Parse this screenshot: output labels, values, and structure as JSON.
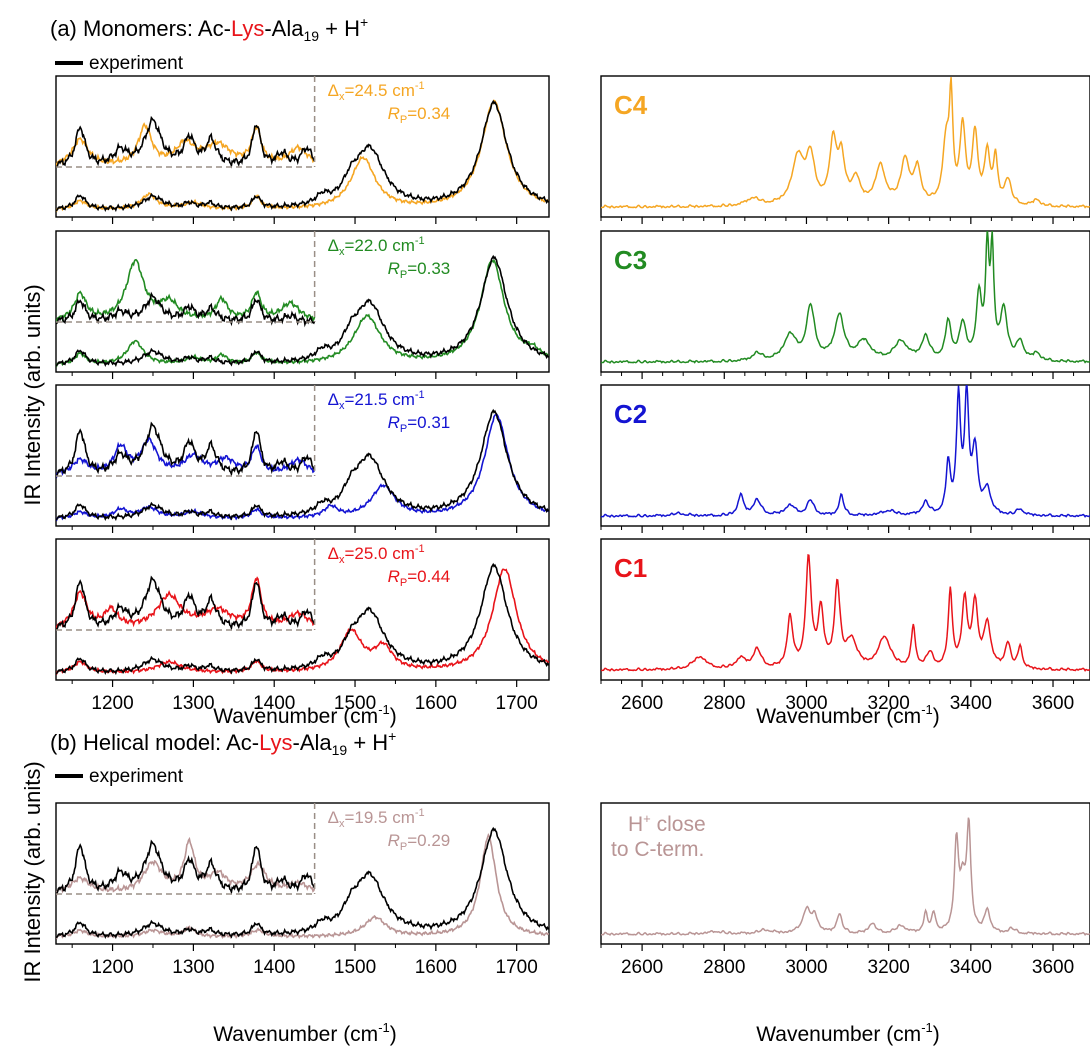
{
  "section_a": {
    "prefix": "(a) Monomers: Ac-",
    "red": "Lys",
    "mid": "-Ala",
    "sub": "19",
    "tail": " + H",
    "sup": "+"
  },
  "section_b": {
    "prefix": "(b) Helical model: Ac-",
    "red": "Lys",
    "mid": "-Ala",
    "sub": "19",
    "tail": " + H",
    "sup": "+"
  },
  "legend": {
    "label": "experiment",
    "color": "#000000"
  },
  "axes": {
    "ylabel": "IR Intensity (arb. units)",
    "xlabel_left": {
      "main": "Wavenumber (cm",
      "sup": "-1",
      "close": ")"
    },
    "xlabel_right": {
      "main": "Wavenumber (cm",
      "sup": "-1",
      "close": ")"
    }
  },
  "chart_data": [
    {
      "type": "line",
      "panel": "C4 fingerprint",
      "x_range": [
        1130,
        1740
      ],
      "xticks": [
        1200,
        1300,
        1400,
        1500,
        1600,
        1700
      ],
      "color": "#f5a623",
      "delta_label": "Δ",
      "delta_sub": "x",
      "delta_value": "=24.5 cm",
      "delta_unit_sup": "-1",
      "rp_label": "R",
      "rp_sub": "P",
      "rp_value": "=0.34",
      "experiment_peaks": [
        [
          1160,
          0.13,
          8
        ],
        [
          1250,
          0.12,
          15
        ],
        [
          1295,
          0.05,
          8
        ],
        [
          1320,
          0.05,
          8
        ],
        [
          1378,
          0.11,
          6
        ],
        [
          1460,
          0.08,
          10
        ],
        [
          1495,
          0.15,
          12
        ],
        [
          1518,
          0.55,
          22
        ],
        [
          1672,
          1.0,
          20
        ]
      ],
      "theory_peaks": [
        [
          1160,
          0.08,
          10
        ],
        [
          1245,
          0.14,
          12
        ],
        [
          1300,
          0.06,
          14
        ],
        [
          1378,
          0.12,
          6
        ],
        [
          1510,
          0.48,
          18
        ],
        [
          1672,
          1.02,
          19
        ]
      ],
      "inset_experiment": [
        [
          1160,
          0.65,
          7
        ],
        [
          1210,
          0.25,
          10
        ],
        [
          1250,
          0.75,
          12
        ],
        [
          1295,
          0.45,
          8
        ],
        [
          1322,
          0.42,
          8
        ],
        [
          1378,
          0.7,
          6
        ],
        [
          1410,
          0.2,
          8
        ],
        [
          1440,
          0.3,
          8
        ]
      ],
      "inset_theory": [
        [
          1160,
          0.45,
          12
        ],
        [
          1240,
          0.65,
          10
        ],
        [
          1290,
          0.35,
          14
        ],
        [
          1330,
          0.35,
          20
        ],
        [
          1378,
          0.6,
          7
        ],
        [
          1430,
          0.3,
          14
        ]
      ]
    },
    {
      "type": "line",
      "panel": "C3 fingerprint",
      "x_range": [
        1130,
        1740
      ],
      "xticks": [
        1200,
        1300,
        1400,
        1500,
        1600,
        1700
      ],
      "color": "#228b22",
      "delta_label": "Δ",
      "delta_sub": "x",
      "delta_value": "=22.0 cm",
      "delta_unit_sup": "-1",
      "rp_label": "R",
      "rp_sub": "P",
      "rp_value": "=0.33",
      "experiment_peaks": [
        [
          1160,
          0.13,
          8
        ],
        [
          1250,
          0.12,
          15
        ],
        [
          1295,
          0.05,
          8
        ],
        [
          1320,
          0.05,
          8
        ],
        [
          1378,
          0.11,
          6
        ],
        [
          1460,
          0.08,
          10
        ],
        [
          1495,
          0.15,
          12
        ],
        [
          1518,
          0.55,
          22
        ],
        [
          1672,
          1.0,
          20
        ]
      ],
      "theory_peaks": [
        [
          1160,
          0.1,
          8
        ],
        [
          1228,
          0.22,
          12
        ],
        [
          1300,
          0.06,
          12
        ],
        [
          1335,
          0.08,
          8
        ],
        [
          1378,
          0.1,
          7
        ],
        [
          1515,
          0.45,
          20
        ],
        [
          1670,
          0.98,
          18
        ],
        [
          1720,
          0.08,
          12
        ]
      ],
      "inset_experiment": [
        [
          1160,
          0.35,
          7
        ],
        [
          1210,
          0.15,
          10
        ],
        [
          1250,
          0.4,
          12
        ],
        [
          1295,
          0.22,
          8
        ],
        [
          1322,
          0.2,
          8
        ],
        [
          1378,
          0.38,
          6
        ],
        [
          1420,
          0.1,
          8
        ]
      ],
      "inset_theory": [
        [
          1160,
          0.45,
          9
        ],
        [
          1228,
          1.0,
          13
        ],
        [
          1270,
          0.3,
          14
        ],
        [
          1335,
          0.35,
          9
        ],
        [
          1378,
          0.45,
          7
        ],
        [
          1420,
          0.3,
          14
        ]
      ]
    },
    {
      "type": "line",
      "panel": "C2 fingerprint",
      "x_range": [
        1130,
        1740
      ],
      "xticks": [
        1200,
        1300,
        1400,
        1500,
        1600,
        1700
      ],
      "color": "#1414d2",
      "delta_label": "Δ",
      "delta_sub": "x",
      "delta_value": "=21.5 cm",
      "delta_unit_sup": "-1",
      "rp_label": "R",
      "rp_sub": "P",
      "rp_value": "=0.31",
      "experiment_peaks": [
        [
          1160,
          0.13,
          8
        ],
        [
          1250,
          0.12,
          15
        ],
        [
          1295,
          0.05,
          8
        ],
        [
          1320,
          0.05,
          8
        ],
        [
          1378,
          0.11,
          6
        ],
        [
          1460,
          0.08,
          10
        ],
        [
          1495,
          0.15,
          12
        ],
        [
          1518,
          0.55,
          22
        ],
        [
          1672,
          1.0,
          20
        ]
      ],
      "theory_peaks": [
        [
          1160,
          0.06,
          10
        ],
        [
          1210,
          0.08,
          10
        ],
        [
          1245,
          0.1,
          14
        ],
        [
          1300,
          0.06,
          14
        ],
        [
          1378,
          0.08,
          7
        ],
        [
          1470,
          0.1,
          10
        ],
        [
          1535,
          0.3,
          18
        ],
        [
          1675,
          0.98,
          18
        ]
      ],
      "inset_experiment": [
        [
          1160,
          0.75,
          7
        ],
        [
          1210,
          0.3,
          10
        ],
        [
          1250,
          0.8,
          12
        ],
        [
          1295,
          0.5,
          8
        ],
        [
          1322,
          0.45,
          8
        ],
        [
          1378,
          0.75,
          6
        ],
        [
          1410,
          0.2,
          8
        ],
        [
          1440,
          0.3,
          8
        ]
      ],
      "inset_theory": [
        [
          1160,
          0.25,
          12
        ],
        [
          1210,
          0.45,
          10
        ],
        [
          1245,
          0.55,
          12
        ],
        [
          1300,
          0.3,
          14
        ],
        [
          1340,
          0.25,
          14
        ],
        [
          1378,
          0.45,
          7
        ],
        [
          1430,
          0.25,
          14
        ]
      ]
    },
    {
      "type": "line",
      "panel": "C1 fingerprint",
      "x_range": [
        1130,
        1740
      ],
      "xticks": [
        1200,
        1300,
        1400,
        1500,
        1600,
        1700
      ],
      "color": "#e8141a",
      "delta_label": "Δ",
      "delta_sub": "x",
      "delta_value": "=25.0 cm",
      "delta_unit_sup": "-1",
      "rp_label": "R",
      "rp_sub": "P",
      "rp_value": "=0.44",
      "experiment_peaks": [
        [
          1160,
          0.13,
          8
        ],
        [
          1250,
          0.12,
          15
        ],
        [
          1295,
          0.05,
          8
        ],
        [
          1320,
          0.05,
          8
        ],
        [
          1378,
          0.11,
          6
        ],
        [
          1460,
          0.08,
          10
        ],
        [
          1495,
          0.15,
          12
        ],
        [
          1518,
          0.55,
          22
        ],
        [
          1672,
          1.0,
          20
        ]
      ],
      "theory_peaks": [
        [
          1160,
          0.1,
          10
        ],
        [
          1270,
          0.1,
          18
        ],
        [
          1378,
          0.1,
          7
        ],
        [
          1495,
          0.38,
          16
        ],
        [
          1535,
          0.22,
          14
        ],
        [
          1685,
          0.98,
          18
        ]
      ],
      "inset_experiment": [
        [
          1160,
          0.8,
          7
        ],
        [
          1210,
          0.3,
          10
        ],
        [
          1250,
          0.8,
          12
        ],
        [
          1295,
          0.5,
          8
        ],
        [
          1322,
          0.45,
          8
        ],
        [
          1378,
          0.8,
          6
        ],
        [
          1410,
          0.2,
          8
        ],
        [
          1440,
          0.3,
          8
        ]
      ],
      "inset_theory": [
        [
          1160,
          0.6,
          10
        ],
        [
          1198,
          0.3,
          10
        ],
        [
          1270,
          0.55,
          18
        ],
        [
          1330,
          0.3,
          20
        ],
        [
          1378,
          0.8,
          7
        ],
        [
          1430,
          0.25,
          16
        ]
      ]
    },
    {
      "type": "line",
      "panel": "C4 high-frequency",
      "x_range": [
        2500,
        3690
      ],
      "xticks": [
        2600,
        2800,
        3000,
        3200,
        3400,
        3600
      ],
      "color": "#f5a623",
      "label": "C4",
      "peaks": [
        [
          2870,
          0.06,
          20
        ],
        [
          2980,
          0.38,
          18
        ],
        [
          3010,
          0.35,
          12
        ],
        [
          3065,
          0.48,
          10
        ],
        [
          3085,
          0.35,
          10
        ],
        [
          3120,
          0.2,
          12
        ],
        [
          3180,
          0.3,
          15
        ],
        [
          3240,
          0.35,
          12
        ],
        [
          3270,
          0.28,
          10
        ],
        [
          3340,
          0.48,
          10
        ],
        [
          3352,
          0.75,
          5
        ],
        [
          3380,
          0.6,
          8
        ],
        [
          3410,
          0.55,
          8
        ],
        [
          3440,
          0.4,
          8
        ],
        [
          3460,
          0.35,
          6
        ],
        [
          3490,
          0.2,
          10
        ],
        [
          3560,
          0.05,
          10
        ]
      ]
    },
    {
      "type": "line",
      "panel": "C3 high-frequency",
      "x_range": [
        2500,
        3690
      ],
      "xticks": [
        2600,
        2800,
        3000,
        3200,
        3400,
        3600
      ],
      "color": "#228b22",
      "label": "C3",
      "peaks": [
        [
          2880,
          0.06,
          15
        ],
        [
          2960,
          0.2,
          18
        ],
        [
          3010,
          0.42,
          12
        ],
        [
          3080,
          0.35,
          14
        ],
        [
          3140,
          0.15,
          20
        ],
        [
          3230,
          0.15,
          20
        ],
        [
          3290,
          0.18,
          12
        ],
        [
          3345,
          0.3,
          8
        ],
        [
          3380,
          0.28,
          10
        ],
        [
          3420,
          0.5,
          8
        ],
        [
          3440,
          0.82,
          5
        ],
        [
          3452,
          0.82,
          5
        ],
        [
          3480,
          0.4,
          10
        ],
        [
          3520,
          0.15,
          10
        ],
        [
          3560,
          0.06,
          10
        ]
      ]
    },
    {
      "type": "line",
      "panel": "C2 high-frequency",
      "x_range": [
        2500,
        3690
      ],
      "xticks": [
        2600,
        2800,
        3000,
        3200,
        3400,
        3600
      ],
      "color": "#1414d2",
      "label": "C2",
      "peaks": [
        [
          2690,
          0.02,
          20
        ],
        [
          2840,
          0.16,
          8
        ],
        [
          2880,
          0.12,
          12
        ],
        [
          2960,
          0.08,
          15
        ],
        [
          3010,
          0.12,
          10
        ],
        [
          3085,
          0.16,
          7
        ],
        [
          3200,
          0.04,
          20
        ],
        [
          3290,
          0.1,
          10
        ],
        [
          3345,
          0.4,
          6
        ],
        [
          3370,
          0.9,
          6
        ],
        [
          3390,
          0.9,
          6
        ],
        [
          3410,
          0.5,
          8
        ],
        [
          3440,
          0.2,
          10
        ],
        [
          3520,
          0.05,
          10
        ]
      ]
    },
    {
      "type": "line",
      "panel": "C1 high-frequency",
      "x_range": [
        2500,
        3690
      ],
      "xticks": [
        2600,
        2800,
        3000,
        3200,
        3400,
        3600
      ],
      "color": "#e8141a",
      "label": "C1",
      "peaks": [
        [
          2740,
          0.1,
          20
        ],
        [
          2840,
          0.08,
          15
        ],
        [
          2880,
          0.15,
          12
        ],
        [
          2960,
          0.4,
          8
        ],
        [
          3005,
          0.85,
          8
        ],
        [
          3035,
          0.45,
          8
        ],
        [
          3075,
          0.65,
          8
        ],
        [
          3110,
          0.22,
          15
        ],
        [
          3190,
          0.25,
          18
        ],
        [
          3260,
          0.32,
          6
        ],
        [
          3300,
          0.12,
          10
        ],
        [
          3350,
          0.6,
          6
        ],
        [
          3385,
          0.52,
          8
        ],
        [
          3410,
          0.5,
          8
        ],
        [
          3440,
          0.35,
          10
        ],
        [
          3490,
          0.2,
          8
        ],
        [
          3520,
          0.18,
          6
        ]
      ]
    },
    {
      "type": "line",
      "panel": "Helical model fingerprint",
      "x_range": [
        1130,
        1740
      ],
      "xticks": [
        1200,
        1300,
        1400,
        1500,
        1600,
        1700
      ],
      "color": "#b99595",
      "delta_label": "Δ",
      "delta_sub": "x",
      "delta_value": "=19.5 cm",
      "delta_unit_sup": "-1",
      "rp_label": "R",
      "rp_sub": "P",
      "rp_value": "=0.29",
      "experiment_peaks": [
        [
          1160,
          0.13,
          8
        ],
        [
          1250,
          0.12,
          15
        ],
        [
          1295,
          0.05,
          8
        ],
        [
          1320,
          0.05,
          8
        ],
        [
          1378,
          0.11,
          6
        ],
        [
          1460,
          0.08,
          10
        ],
        [
          1495,
          0.15,
          12
        ],
        [
          1518,
          0.55,
          22
        ],
        [
          1672,
          1.0,
          20
        ]
      ],
      "theory_peaks": [
        [
          1160,
          0.06,
          10
        ],
        [
          1250,
          0.06,
          14
        ],
        [
          1295,
          0.08,
          8
        ],
        [
          1380,
          0.06,
          10
        ],
        [
          1525,
          0.18,
          16
        ],
        [
          1665,
          0.95,
          12
        ]
      ],
      "inset_experiment": [
        [
          1160,
          0.8,
          7
        ],
        [
          1210,
          0.3,
          10
        ],
        [
          1250,
          0.8,
          12
        ],
        [
          1295,
          0.5,
          8
        ],
        [
          1322,
          0.45,
          8
        ],
        [
          1378,
          0.8,
          6
        ],
        [
          1410,
          0.2,
          8
        ],
        [
          1440,
          0.3,
          8
        ]
      ],
      "inset_theory": [
        [
          1160,
          0.25,
          14
        ],
        [
          1250,
          0.5,
          14
        ],
        [
          1295,
          0.8,
          8
        ],
        [
          1330,
          0.3,
          14
        ],
        [
          1380,
          0.45,
          12
        ],
        [
          1430,
          0.15,
          16
        ]
      ]
    },
    {
      "type": "line",
      "panel": "Helical model high-frequency",
      "x_range": [
        2500,
        3690
      ],
      "xticks": [
        2600,
        2800,
        3000,
        3200,
        3400,
        3600
      ],
      "color": "#b99595",
      "annotation_line1_main": "H",
      "annotation_line1_sup": "+",
      "annotation_line1_tail": " close",
      "annotation_line2": "to C-term.",
      "peaks": [
        [
          2780,
          0.02,
          20
        ],
        [
          2900,
          0.03,
          20
        ],
        [
          3000,
          0.18,
          12
        ],
        [
          3020,
          0.12,
          10
        ],
        [
          3080,
          0.15,
          8
        ],
        [
          3160,
          0.08,
          10
        ],
        [
          3230,
          0.06,
          15
        ],
        [
          3290,
          0.15,
          6
        ],
        [
          3310,
          0.15,
          6
        ],
        [
          3365,
          0.7,
          6
        ],
        [
          3380,
          0.35,
          8
        ],
        [
          3395,
          0.82,
          6
        ],
        [
          3440,
          0.18,
          8
        ],
        [
          3500,
          0.04,
          10
        ]
      ]
    }
  ]
}
